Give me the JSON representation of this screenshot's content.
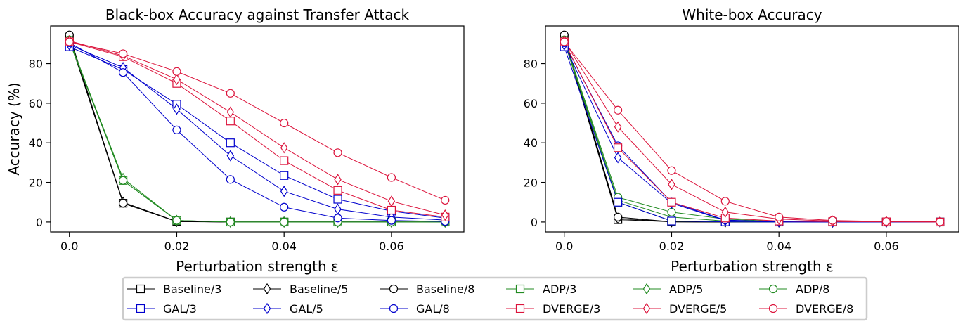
{
  "chart_data": [
    {
      "type": "line",
      "title": "Black-box Accuracy against Transfer Attack",
      "xlabel": "Perturbation strength ε",
      "ylabel": "Accuracy (%)",
      "x": [
        0.0,
        0.01,
        0.02,
        0.03,
        0.04,
        0.05,
        0.06,
        0.07
      ],
      "xlim": [
        -0.0035,
        0.0735
      ],
      "ylim": [
        -5,
        99
      ],
      "xticks": [
        0.0,
        0.02,
        0.04,
        0.06
      ],
      "xtick_labels": [
        "0.0",
        "0.02",
        "0.04",
        "0.06"
      ],
      "yticks": [
        0,
        20,
        40,
        60,
        80
      ],
      "ytick_labels": [
        "0",
        "20",
        "40",
        "60",
        "80"
      ],
      "grid": false,
      "series": [
        {
          "name": "Baseline/3",
          "color": "#000000",
          "marker": "square",
          "values": [
            92.5,
            9.5,
            0.3,
            0,
            0,
            0,
            0,
            0
          ]
        },
        {
          "name": "Baseline/5",
          "color": "#000000",
          "marker": "diamond",
          "values": [
            93.5,
            10,
            0.3,
            0,
            0,
            0,
            0,
            0
          ]
        },
        {
          "name": "Baseline/8",
          "color": "#000000",
          "marker": "circle",
          "values": [
            94.5,
            9.5,
            0.2,
            0,
            0,
            0,
            0,
            0
          ]
        },
        {
          "name": "ADP/3",
          "color": "#228b22",
          "marker": "square",
          "values": [
            91,
            21,
            0.8,
            0,
            0,
            0,
            0,
            0
          ]
        },
        {
          "name": "ADP/5",
          "color": "#228b22",
          "marker": "diamond",
          "values": [
            91.5,
            22,
            0.8,
            0,
            0,
            0,
            0,
            0
          ]
        },
        {
          "name": "ADP/8",
          "color": "#228b22",
          "marker": "circle",
          "values": [
            92,
            21,
            0.8,
            0,
            0,
            0,
            0,
            0
          ]
        },
        {
          "name": "GAL/3",
          "color": "#0000cd",
          "marker": "square",
          "values": [
            88.5,
            77,
            59.5,
            40,
            23.5,
            11.5,
            5.5,
            2
          ]
        },
        {
          "name": "GAL/5",
          "color": "#0000cd",
          "marker": "diamond",
          "values": [
            89.5,
            78,
            57,
            33.5,
            15.5,
            6.5,
            2.5,
            1
          ]
        },
        {
          "name": "GAL/8",
          "color": "#0000cd",
          "marker": "circle",
          "values": [
            90.5,
            75.5,
            46.5,
            21.5,
            7.5,
            2,
            0.8,
            0.3
          ]
        },
        {
          "name": "DVERGE/3",
          "color": "#dc143c",
          "marker": "square",
          "values": [
            91,
            83.5,
            70,
            51,
            31,
            16,
            6,
            2.5
          ]
        },
        {
          "name": "DVERGE/5",
          "color": "#dc143c",
          "marker": "diamond",
          "values": [
            91.5,
            84,
            72,
            55.5,
            37.5,
            21.5,
            10.5,
            3.5
          ]
        },
        {
          "name": "DVERGE/8",
          "color": "#dc143c",
          "marker": "circle",
          "values": [
            91,
            85,
            76,
            65,
            50,
            35,
            22.5,
            11
          ]
        }
      ]
    },
    {
      "type": "line",
      "title": "White-box Accuracy",
      "xlabel": "Perturbation strength ε",
      "ylabel": "",
      "x": [
        0.0,
        0.01,
        0.02,
        0.03,
        0.04,
        0.05,
        0.06,
        0.07
      ],
      "xlim": [
        -0.0035,
        0.0735
      ],
      "ylim": [
        -5,
        99
      ],
      "xticks": [
        0.0,
        0.02,
        0.04,
        0.06
      ],
      "xtick_labels": [
        "0.0",
        "0.02",
        "0.04",
        "0.06"
      ],
      "yticks": [
        0,
        20,
        40,
        60,
        80
      ],
      "ytick_labels": [
        "0",
        "20",
        "40",
        "60",
        "80"
      ],
      "grid": false,
      "series": [
        {
          "name": "Baseline/3",
          "color": "#000000",
          "marker": "square",
          "values": [
            92.5,
            1.2,
            0.1,
            0,
            0,
            0,
            0,
            0
          ]
        },
        {
          "name": "Baseline/5",
          "color": "#000000",
          "marker": "diamond",
          "values": [
            93.5,
            1.8,
            0.1,
            0,
            0,
            0,
            0,
            0
          ]
        },
        {
          "name": "Baseline/8",
          "color": "#000000",
          "marker": "circle",
          "values": [
            94.5,
            2.5,
            0.1,
            0,
            0,
            0,
            0,
            0
          ]
        },
        {
          "name": "ADP/3",
          "color": "#228b22",
          "marker": "square",
          "values": [
            91,
            10,
            0.5,
            0.1,
            0,
            0,
            0,
            0
          ]
        },
        {
          "name": "ADP/5",
          "color": "#228b22",
          "marker": "diamond",
          "values": [
            91.5,
            11,
            2.5,
            0.5,
            0.1,
            0,
            0,
            0
          ]
        },
        {
          "name": "ADP/8",
          "color": "#228b22",
          "marker": "circle",
          "values": [
            92,
            12.5,
            5,
            1.5,
            0.3,
            0,
            0,
            0
          ]
        },
        {
          "name": "GAL/3",
          "color": "#0000cd",
          "marker": "square",
          "values": [
            88.5,
            10,
            0.5,
            0.1,
            0,
            0,
            0,
            0
          ]
        },
        {
          "name": "GAL/5",
          "color": "#0000cd",
          "marker": "diamond",
          "values": [
            89.5,
            32.5,
            9.5,
            0.8,
            0.1,
            0,
            0,
            0
          ]
        },
        {
          "name": "GAL/8",
          "color": "#0000cd",
          "marker": "circle",
          "values": [
            90.5,
            38.5,
            10,
            1,
            0.2,
            0,
            0,
            0
          ]
        },
        {
          "name": "DVERGE/3",
          "color": "#dc143c",
          "marker": "square",
          "values": [
            91,
            37.5,
            10,
            2,
            0.5,
            0.2,
            0.1,
            0
          ]
        },
        {
          "name": "DVERGE/5",
          "color": "#dc143c",
          "marker": "diamond",
          "values": [
            91.5,
            48,
            19,
            5,
            1.5,
            0.5,
            0.2,
            0.1
          ]
        },
        {
          "name": "DVERGE/8",
          "color": "#dc143c",
          "marker": "circle",
          "values": [
            91,
            56.5,
            26,
            10.5,
            2.5,
            0.8,
            0.3,
            0.1
          ]
        }
      ]
    }
  ],
  "legend": {
    "placement": "bottom",
    "entries": [
      {
        "label": "Baseline/3",
        "color": "#000000",
        "marker": "square"
      },
      {
        "label": "Baseline/5",
        "color": "#000000",
        "marker": "diamond"
      },
      {
        "label": "Baseline/8",
        "color": "#000000",
        "marker": "circle"
      },
      {
        "label": "ADP/3",
        "color": "#228b22",
        "marker": "square"
      },
      {
        "label": "ADP/5",
        "color": "#228b22",
        "marker": "diamond"
      },
      {
        "label": "ADP/8",
        "color": "#228b22",
        "marker": "circle"
      },
      {
        "label": "GAL/3",
        "color": "#0000cd",
        "marker": "square"
      },
      {
        "label": "GAL/5",
        "color": "#0000cd",
        "marker": "diamond"
      },
      {
        "label": "GAL/8",
        "color": "#0000cd",
        "marker": "circle"
      },
      {
        "label": "DVERGE/3",
        "color": "#dc143c",
        "marker": "square"
      },
      {
        "label": "DVERGE/5",
        "color": "#dc143c",
        "marker": "diamond"
      },
      {
        "label": "DVERGE/8",
        "color": "#dc143c",
        "marker": "circle"
      }
    ]
  }
}
